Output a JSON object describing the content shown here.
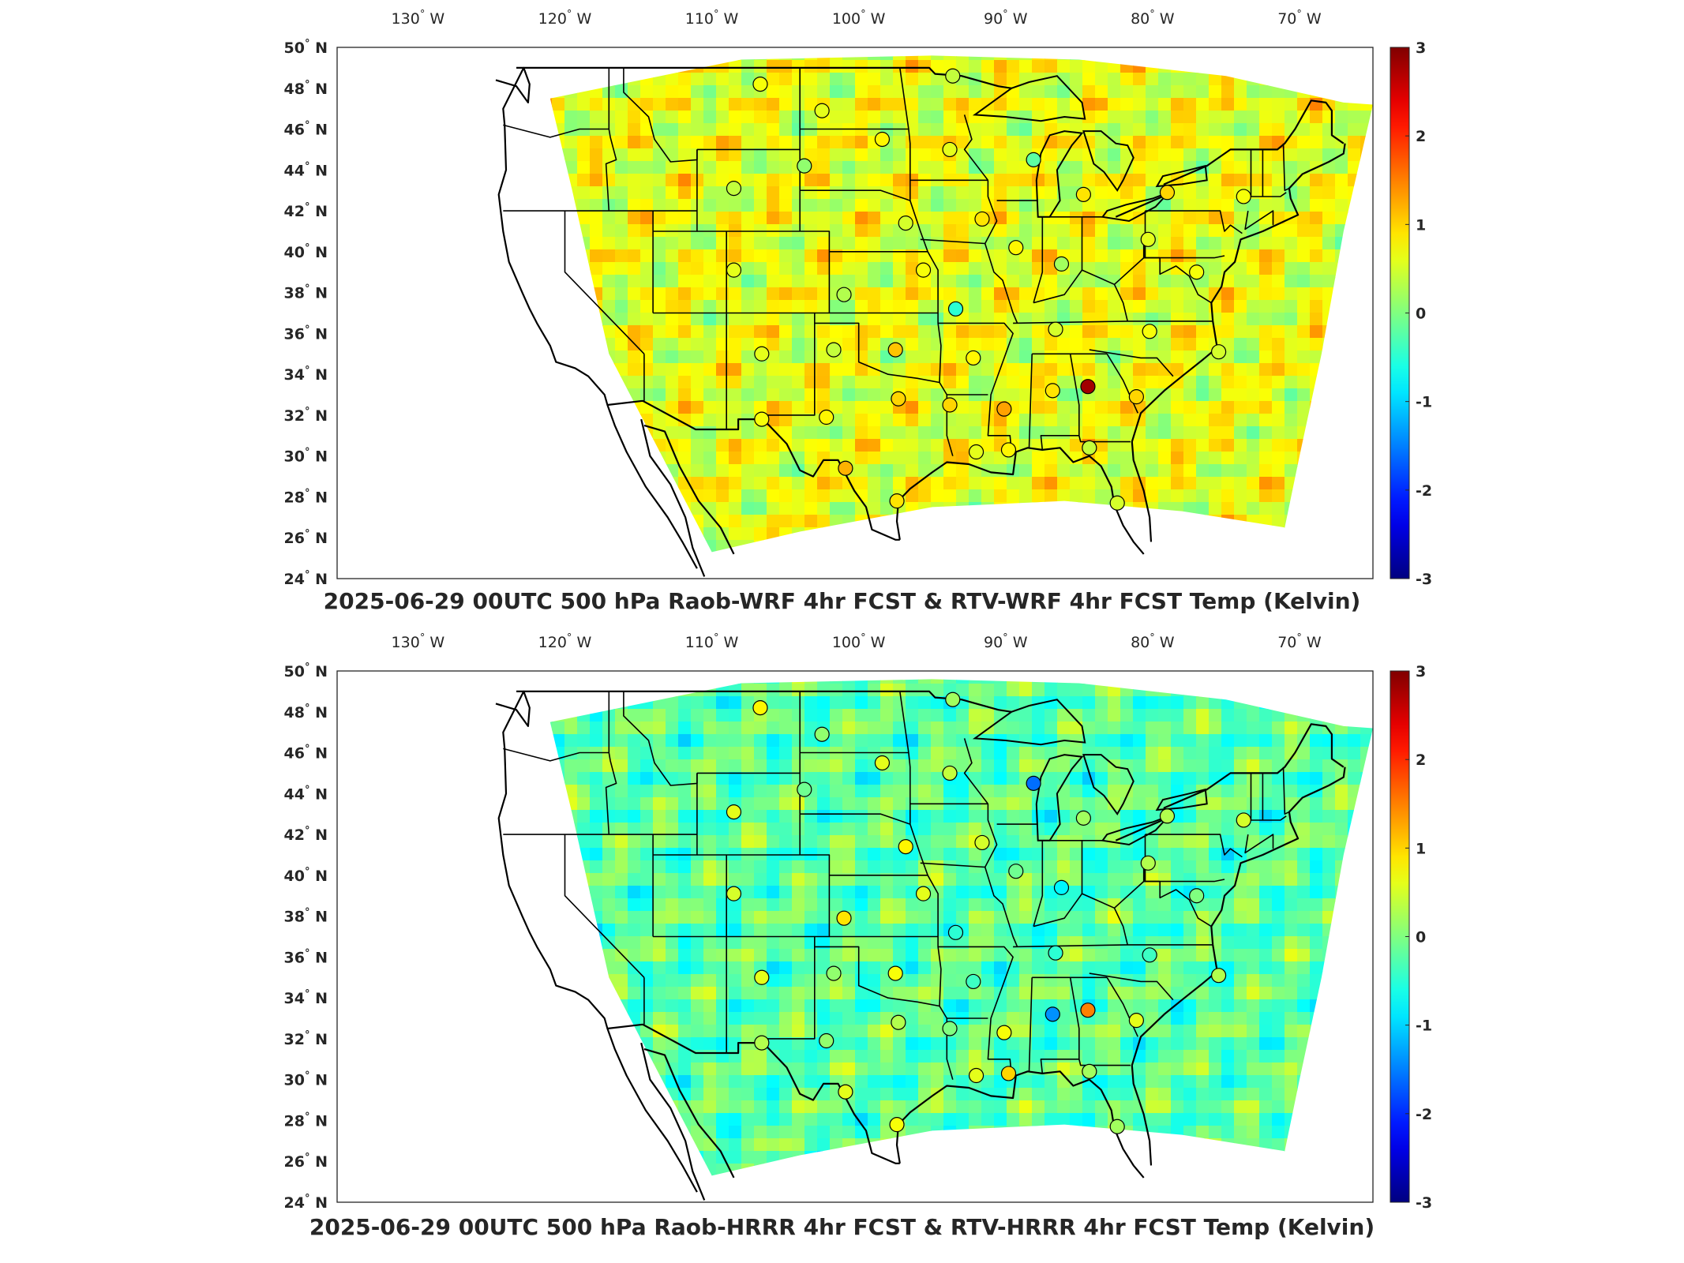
{
  "panels": [
    {
      "title": "2025-06-29 00UTC 500 hPa Raob-WRF 4hr FCST & RTV-WRF 4hr FCST Temp (Kelvin)",
      "longitude_labels": [
        "130",
        "120",
        "110",
        "100",
        "90",
        "80",
        "70"
      ],
      "latitude_labels": [
        "50",
        "48",
        "46",
        "44",
        "42",
        "40",
        "38",
        "36",
        "34",
        "32",
        "30",
        "28",
        "26",
        "24"
      ],
      "west_suffix": "W",
      "north_suffix": "N",
      "degree_symbol": "°",
      "colorbar_ticks": [
        "3",
        "2",
        "1",
        "0",
        "-1",
        "-2",
        "-3"
      ],
      "field_mean_kelvin": 0.6,
      "stations": [
        {
          "lon": -106.7,
          "lat": 48.2,
          "value": 0.7
        },
        {
          "lon": -102.5,
          "lat": 46.9,
          "value": 0.6
        },
        {
          "lon": -98.4,
          "lat": 45.5,
          "value": 0.8
        },
        {
          "lon": -93.6,
          "lat": 48.6,
          "value": 0.4
        },
        {
          "lon": -93.8,
          "lat": 45.0,
          "value": 0.6
        },
        {
          "lon": -88.1,
          "lat": 44.5,
          "value": -0.2
        },
        {
          "lon": -84.7,
          "lat": 42.8,
          "value": 0.9
        },
        {
          "lon": -79.0,
          "lat": 42.9,
          "value": 1.0
        },
        {
          "lon": -73.8,
          "lat": 42.7,
          "value": 0.7
        },
        {
          "lon": -108.5,
          "lat": 43.1,
          "value": 0.4
        },
        {
          "lon": -103.7,
          "lat": 44.2,
          "value": 0.1
        },
        {
          "lon": -96.8,
          "lat": 41.4,
          "value": 0.5
        },
        {
          "lon": -91.6,
          "lat": 41.6,
          "value": 0.9
        },
        {
          "lon": -89.3,
          "lat": 40.2,
          "value": 0.8
        },
        {
          "lon": -86.2,
          "lat": 39.4,
          "value": 0.2
        },
        {
          "lon": -80.3,
          "lat": 40.6,
          "value": 0.6
        },
        {
          "lon": -77.0,
          "lat": 39.0,
          "value": 0.7
        },
        {
          "lon": -108.5,
          "lat": 39.1,
          "value": 0.6
        },
        {
          "lon": -101.0,
          "lat": 37.9,
          "value": 0.3
        },
        {
          "lon": -95.6,
          "lat": 39.1,
          "value": 0.7
        },
        {
          "lon": -93.4,
          "lat": 37.2,
          "value": -0.5
        },
        {
          "lon": -86.6,
          "lat": 36.2,
          "value": 0.5
        },
        {
          "lon": -80.2,
          "lat": 36.1,
          "value": 0.7
        },
        {
          "lon": -75.5,
          "lat": 35.1,
          "value": 0.5
        },
        {
          "lon": -106.6,
          "lat": 35.0,
          "value": 0.6
        },
        {
          "lon": -101.7,
          "lat": 35.2,
          "value": 0.4
        },
        {
          "lon": -97.5,
          "lat": 35.2,
          "value": 1.1
        },
        {
          "lon": -92.2,
          "lat": 34.8,
          "value": 0.8
        },
        {
          "lon": -90.1,
          "lat": 32.3,
          "value": 1.3
        },
        {
          "lon": -86.8,
          "lat": 33.2,
          "value": 0.9
        },
        {
          "lon": -84.4,
          "lat": 33.4,
          "value": 2.8
        },
        {
          "lon": -81.1,
          "lat": 32.9,
          "value": 1.0
        },
        {
          "lon": -106.6,
          "lat": 31.8,
          "value": 0.7
        },
        {
          "lon": -102.2,
          "lat": 31.9,
          "value": 0.8
        },
        {
          "lon": -97.3,
          "lat": 32.8,
          "value": 1.0
        },
        {
          "lon": -93.8,
          "lat": 32.5,
          "value": 1.0
        },
        {
          "lon": -92.0,
          "lat": 30.2,
          "value": 0.6
        },
        {
          "lon": -89.8,
          "lat": 30.3,
          "value": 0.8
        },
        {
          "lon": -84.3,
          "lat": 30.4,
          "value": 0.4
        },
        {
          "lon": -100.9,
          "lat": 29.4,
          "value": 1.2
        },
        {
          "lon": -97.4,
          "lat": 27.8,
          "value": 0.9
        },
        {
          "lon": -82.4,
          "lat": 27.7,
          "value": 0.5
        }
      ]
    },
    {
      "title": "2025-06-29 00UTC 500 hPa Raob-HRRR 4hr FCST & RTV-HRRR 4hr FCST Temp (Kelvin)",
      "longitude_labels": [
        "130",
        "120",
        "110",
        "100",
        "90",
        "80",
        "70"
      ],
      "latitude_labels": [
        "50",
        "48",
        "46",
        "44",
        "42",
        "40",
        "38",
        "36",
        "34",
        "32",
        "30",
        "28",
        "26",
        "24"
      ],
      "west_suffix": "W",
      "north_suffix": "N",
      "degree_symbol": "°",
      "colorbar_ticks": [
        "3",
        "2",
        "1",
        "0",
        "-1",
        "-2",
        "-3"
      ],
      "field_mean_kelvin": -0.2,
      "stations": [
        {
          "lon": -106.7,
          "lat": 48.2,
          "value": 0.8
        },
        {
          "lon": -102.5,
          "lat": 46.9,
          "value": 0.1
        },
        {
          "lon": -98.4,
          "lat": 45.5,
          "value": 0.6
        },
        {
          "lon": -93.6,
          "lat": 48.6,
          "value": 0.2
        },
        {
          "lon": -93.8,
          "lat": 45.0,
          "value": 0.4
        },
        {
          "lon": -88.1,
          "lat": 44.5,
          "value": -1.6
        },
        {
          "lon": -84.7,
          "lat": 42.8,
          "value": 0.2
        },
        {
          "lon": -79.0,
          "lat": 42.9,
          "value": 0.3
        },
        {
          "lon": -73.8,
          "lat": 42.7,
          "value": 0.5
        },
        {
          "lon": -108.5,
          "lat": 43.1,
          "value": 0.6
        },
        {
          "lon": -103.7,
          "lat": 44.2,
          "value": -0.1
        },
        {
          "lon": -96.8,
          "lat": 41.4,
          "value": 0.8
        },
        {
          "lon": -91.6,
          "lat": 41.6,
          "value": 0.5
        },
        {
          "lon": -89.3,
          "lat": 40.2,
          "value": -0.1
        },
        {
          "lon": -86.2,
          "lat": 39.4,
          "value": -0.8
        },
        {
          "lon": -80.3,
          "lat": 40.6,
          "value": 0.3
        },
        {
          "lon": -77.0,
          "lat": 39.0,
          "value": 0.0
        },
        {
          "lon": -108.5,
          "lat": 39.1,
          "value": 0.5
        },
        {
          "lon": -101.0,
          "lat": 37.9,
          "value": 0.9
        },
        {
          "lon": -95.6,
          "lat": 39.1,
          "value": 0.6
        },
        {
          "lon": -93.4,
          "lat": 37.2,
          "value": -0.5
        },
        {
          "lon": -86.6,
          "lat": 36.2,
          "value": -0.5
        },
        {
          "lon": -80.2,
          "lat": 36.1,
          "value": -0.4
        },
        {
          "lon": -75.5,
          "lat": 35.1,
          "value": 0.3
        },
        {
          "lon": -106.6,
          "lat": 35.0,
          "value": 0.6
        },
        {
          "lon": -101.7,
          "lat": 35.2,
          "value": 0.1
        },
        {
          "lon": -97.5,
          "lat": 35.2,
          "value": 0.7
        },
        {
          "lon": -92.2,
          "lat": 34.8,
          "value": -0.4
        },
        {
          "lon": -90.1,
          "lat": 32.3,
          "value": 0.7
        },
        {
          "lon": -86.8,
          "lat": 33.2,
          "value": -1.4
        },
        {
          "lon": -84.4,
          "lat": 33.4,
          "value": 1.5
        },
        {
          "lon": -81.1,
          "lat": 32.9,
          "value": 0.6
        },
        {
          "lon": -106.6,
          "lat": 31.8,
          "value": 0.3
        },
        {
          "lon": -102.2,
          "lat": 31.9,
          "value": 0.1
        },
        {
          "lon": -97.3,
          "lat": 32.8,
          "value": 0.3
        },
        {
          "lon": -93.8,
          "lat": 32.5,
          "value": 0.0
        },
        {
          "lon": -92.0,
          "lat": 30.2,
          "value": 0.6
        },
        {
          "lon": -89.8,
          "lat": 30.3,
          "value": 1.0
        },
        {
          "lon": -84.3,
          "lat": 30.4,
          "value": 0.2
        },
        {
          "lon": -100.9,
          "lat": 29.4,
          "value": 0.6
        },
        {
          "lon": -97.4,
          "lat": 27.8,
          "value": 0.7
        },
        {
          "lon": -82.4,
          "lat": 27.7,
          "value": 0.2
        }
      ]
    }
  ],
  "colormap": "jet",
  "color_range": [
    -3,
    3
  ]
}
